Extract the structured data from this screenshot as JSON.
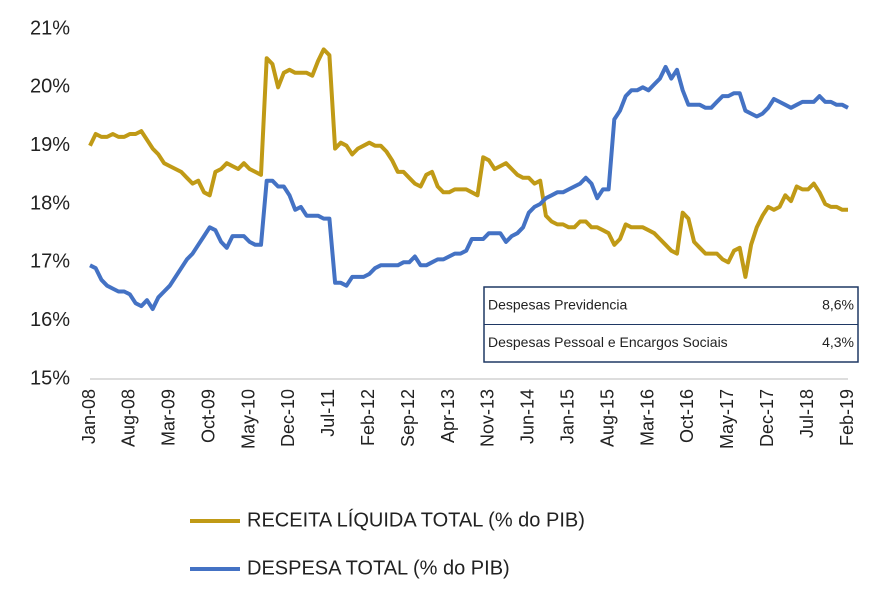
{
  "chart_data": {
    "type": "line",
    "categories": [
      "Jan-08",
      null,
      null,
      null,
      null,
      null,
      null,
      "Aug-08",
      null,
      null,
      null,
      null,
      null,
      null,
      "Mar-09",
      null,
      null,
      null,
      null,
      null,
      null,
      "Oct-09",
      null,
      null,
      null,
      null,
      null,
      null,
      "May-10",
      null,
      null,
      null,
      null,
      null,
      null,
      "Dec-10",
      null,
      null,
      null,
      null,
      null,
      null,
      "Jul-11",
      null,
      null,
      null,
      null,
      null,
      null,
      "Feb-12",
      null,
      null,
      null,
      null,
      null,
      null,
      "Sep-12",
      null,
      null,
      null,
      null,
      null,
      null,
      "Apr-13",
      null,
      null,
      null,
      null,
      null,
      null,
      "Nov-13",
      null,
      null,
      null,
      null,
      null,
      null,
      "Jun-14",
      null,
      null,
      null,
      null,
      null,
      null,
      "Jan-15",
      null,
      null,
      null,
      null,
      null,
      null,
      "Aug-15",
      null,
      null,
      null,
      null,
      null,
      null,
      "Mar-16",
      null,
      null,
      null,
      null,
      null,
      null,
      "Oct-16",
      null,
      null,
      null,
      null,
      null,
      null,
      "May-17",
      null,
      null,
      null,
      null,
      null,
      null,
      "Dec-17",
      null,
      null,
      null,
      null,
      null,
      null,
      "Jul-18",
      null,
      null,
      null,
      null,
      null,
      null,
      "Feb-19"
    ],
    "series": [
      {
        "name": "RECEITA LÍQUIDA TOTAL (% do PIB)",
        "color": "#c09a16",
        "values": [
          19.0,
          19.2,
          19.15,
          19.15,
          19.2,
          19.15,
          19.15,
          19.2,
          19.2,
          19.25,
          19.1,
          18.95,
          18.85,
          18.7,
          18.65,
          18.6,
          18.55,
          18.45,
          18.35,
          18.4,
          18.2,
          18.15,
          18.55,
          18.6,
          18.7,
          18.65,
          18.6,
          18.7,
          18.6,
          18.55,
          18.5,
          20.5,
          20.4,
          20.0,
          20.25,
          20.3,
          20.25,
          20.25,
          20.25,
          20.2,
          20.45,
          20.65,
          20.55,
          18.95,
          19.05,
          19.0,
          18.85,
          18.95,
          19.0,
          19.05,
          19.0,
          19.0,
          18.9,
          18.75,
          18.55,
          18.55,
          18.45,
          18.35,
          18.3,
          18.5,
          18.55,
          18.3,
          18.2,
          18.2,
          18.25,
          18.25,
          18.25,
          18.2,
          18.15,
          18.8,
          18.75,
          18.6,
          18.65,
          18.7,
          18.6,
          18.5,
          18.45,
          18.45,
          18.35,
          18.4,
          17.8,
          17.7,
          17.65,
          17.65,
          17.6,
          17.6,
          17.7,
          17.7,
          17.6,
          17.6,
          17.55,
          17.5,
          17.3,
          17.4,
          17.65,
          17.6,
          17.6,
          17.6,
          17.55,
          17.5,
          17.4,
          17.3,
          17.2,
          17.15,
          17.85,
          17.75,
          17.35,
          17.25,
          17.15,
          17.15,
          17.15,
          17.05,
          17.0,
          17.2,
          17.25,
          16.75,
          17.3,
          17.6,
          17.8,
          17.95,
          17.9,
          17.95,
          18.15,
          18.05,
          18.3,
          18.25,
          18.25,
          18.35,
          18.2,
          18.0,
          17.95,
          17.95,
          17.9,
          17.9
        ]
      },
      {
        "name": "DESPESA TOTAL (% do PIB)",
        "color": "#4472c4",
        "values": [
          16.95,
          16.9,
          16.7,
          16.6,
          16.55,
          16.5,
          16.5,
          16.45,
          16.3,
          16.25,
          16.35,
          16.2,
          16.4,
          16.5,
          16.6,
          16.75,
          16.9,
          17.05,
          17.15,
          17.3,
          17.45,
          17.6,
          17.55,
          17.35,
          17.25,
          17.45,
          17.45,
          17.45,
          17.35,
          17.3,
          17.3,
          18.4,
          18.4,
          18.3,
          18.3,
          18.15,
          17.9,
          17.95,
          17.8,
          17.8,
          17.8,
          17.75,
          17.75,
          16.65,
          16.65,
          16.6,
          16.75,
          16.75,
          16.75,
          16.8,
          16.9,
          16.95,
          16.95,
          16.95,
          16.95,
          17.0,
          17.0,
          17.1,
          16.95,
          16.95,
          17.0,
          17.05,
          17.05,
          17.1,
          17.15,
          17.15,
          17.2,
          17.4,
          17.4,
          17.4,
          17.5,
          17.5,
          17.5,
          17.35,
          17.45,
          17.5,
          17.6,
          17.85,
          17.95,
          18.0,
          18.1,
          18.15,
          18.2,
          18.2,
          18.25,
          18.3,
          18.35,
          18.45,
          18.35,
          18.1,
          18.25,
          18.25,
          19.45,
          19.6,
          19.85,
          19.95,
          19.95,
          20.0,
          19.95,
          20.05,
          20.15,
          20.35,
          20.15,
          20.3,
          19.95,
          19.7,
          19.7,
          19.7,
          19.65,
          19.65,
          19.75,
          19.85,
          19.85,
          19.9,
          19.9,
          19.6,
          19.55,
          19.5,
          19.55,
          19.65,
          19.8,
          19.75,
          19.7,
          19.65,
          19.7,
          19.75,
          19.75,
          19.75,
          19.85,
          19.75,
          19.75,
          19.7,
          19.7,
          19.65
        ]
      }
    ],
    "ylim": [
      15,
      21
    ],
    "yticks": [
      {
        "value": 15,
        "label": "15%"
      },
      {
        "value": 16,
        "label": "16%"
      },
      {
        "value": 17,
        "label": "17%"
      },
      {
        "value": 18,
        "label": "18%"
      },
      {
        "value": 19,
        "label": "19%"
      },
      {
        "value": 20,
        "label": "20%"
      },
      {
        "value": 21,
        "label": "21%"
      }
    ],
    "grid": false,
    "legend": "bottom",
    "table": {
      "rows": [
        [
          "Despesas Previdencia",
          "8,6%"
        ],
        [
          "Despesas Pessoal e Encargos Sociais",
          "4,3%"
        ]
      ]
    }
  }
}
